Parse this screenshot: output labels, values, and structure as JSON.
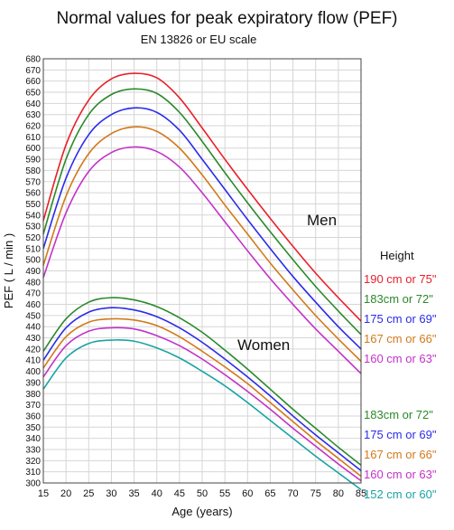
{
  "chart_data": {
    "type": "line",
    "title": "Normal values for peak expiratory flow (PEF)",
    "subtitle": "EN 13826 or EU scale",
    "xlabel": "Age (years)",
    "ylabel": "PEF ( L / min )",
    "xlim": [
      15,
      85
    ],
    "ylim": [
      300,
      680
    ],
    "x_ticks": [
      15,
      20,
      25,
      30,
      35,
      40,
      45,
      50,
      55,
      60,
      65,
      70,
      75,
      80,
      85
    ],
    "y_ticks": [
      300,
      310,
      320,
      330,
      340,
      350,
      360,
      370,
      380,
      390,
      400,
      410,
      420,
      430,
      440,
      450,
      460,
      470,
      480,
      490,
      500,
      510,
      520,
      530,
      540,
      550,
      560,
      570,
      580,
      590,
      600,
      610,
      620,
      630,
      640,
      650,
      660,
      670,
      680
    ],
    "grid": true,
    "x": [
      15,
      20,
      25,
      30,
      35,
      40,
      45,
      50,
      55,
      60,
      65,
      70,
      75,
      80,
      85
    ],
    "groups": [
      {
        "name": "Men",
        "series": [
          {
            "name": "190 cm or 75\"",
            "color": "#e8202a",
            "values": [
              535,
              603,
              643,
              662,
              667,
              663,
              645,
              618,
              590,
              563,
              537,
              512,
              488,
              466,
              445
            ]
          },
          {
            "name": "183cm or 72\"",
            "color": "#2a8a2a",
            "values": [
              523,
              590,
              630,
              648,
              653,
              649,
              632,
              606,
              578,
              551,
              525,
              500,
              476,
              454,
              433
            ]
          },
          {
            "name": "175 cm or 69\"",
            "color": "#2b2bea",
            "values": [
              510,
              573,
              612,
              630,
              636,
              632,
              616,
              590,
              563,
              536,
              510,
              485,
              462,
              440,
              420
            ]
          },
          {
            "name": "167 cm or 66\"",
            "color": "#d2791a",
            "values": [
              495,
              557,
              595,
              613,
              619,
              615,
              600,
              576,
              549,
              523,
              497,
              473,
              450,
              429,
              409
            ]
          },
          {
            "name": "160 cm or 63\"",
            "color": "#c232c8",
            "values": [
              484,
              542,
              579,
              596,
              601,
              597,
              583,
              560,
              534,
              508,
              483,
              460,
              438,
              418,
              398
            ]
          }
        ]
      },
      {
        "name": "Women",
        "series": [
          {
            "name": "183cm or 72\"",
            "color": "#2a8a2a",
            "values": [
              418,
              447,
              462,
              466,
              464,
              458,
              448,
              435,
              419,
              402,
              384,
              366,
              349,
              332,
              316
            ]
          },
          {
            "name": "175 cm or 69\"",
            "color": "#2b2bea",
            "values": [
              410,
              439,
              453,
              457,
              455,
              449,
              439,
              426,
              411,
              395,
              378,
              360,
              343,
              327,
              311
            ]
          },
          {
            "name": "167 cm or 66\"",
            "color": "#d2791a",
            "values": [
              403,
              431,
              444,
              447,
              446,
              441,
              431,
              418,
              404,
              389,
              372,
              355,
              338,
              322,
              306
            ]
          },
          {
            "name": "160 cm or 63\"",
            "color": "#c232c8",
            "values": [
              395,
              423,
              436,
              439,
              438,
              432,
              423,
              411,
              397,
              382,
              366,
              349,
              333,
              317,
              302
            ]
          },
          {
            "name": "152 cm or 60\"",
            "color": "#1aa3a3",
            "values": [
              384,
              412,
              425,
              428,
              427,
              421,
              412,
              400,
              387,
              372,
              356,
              340,
              324,
              309,
              294
            ]
          }
        ]
      }
    ],
    "annotations": {
      "men": "Men",
      "women": "Women",
      "legend_title": "Height"
    }
  }
}
